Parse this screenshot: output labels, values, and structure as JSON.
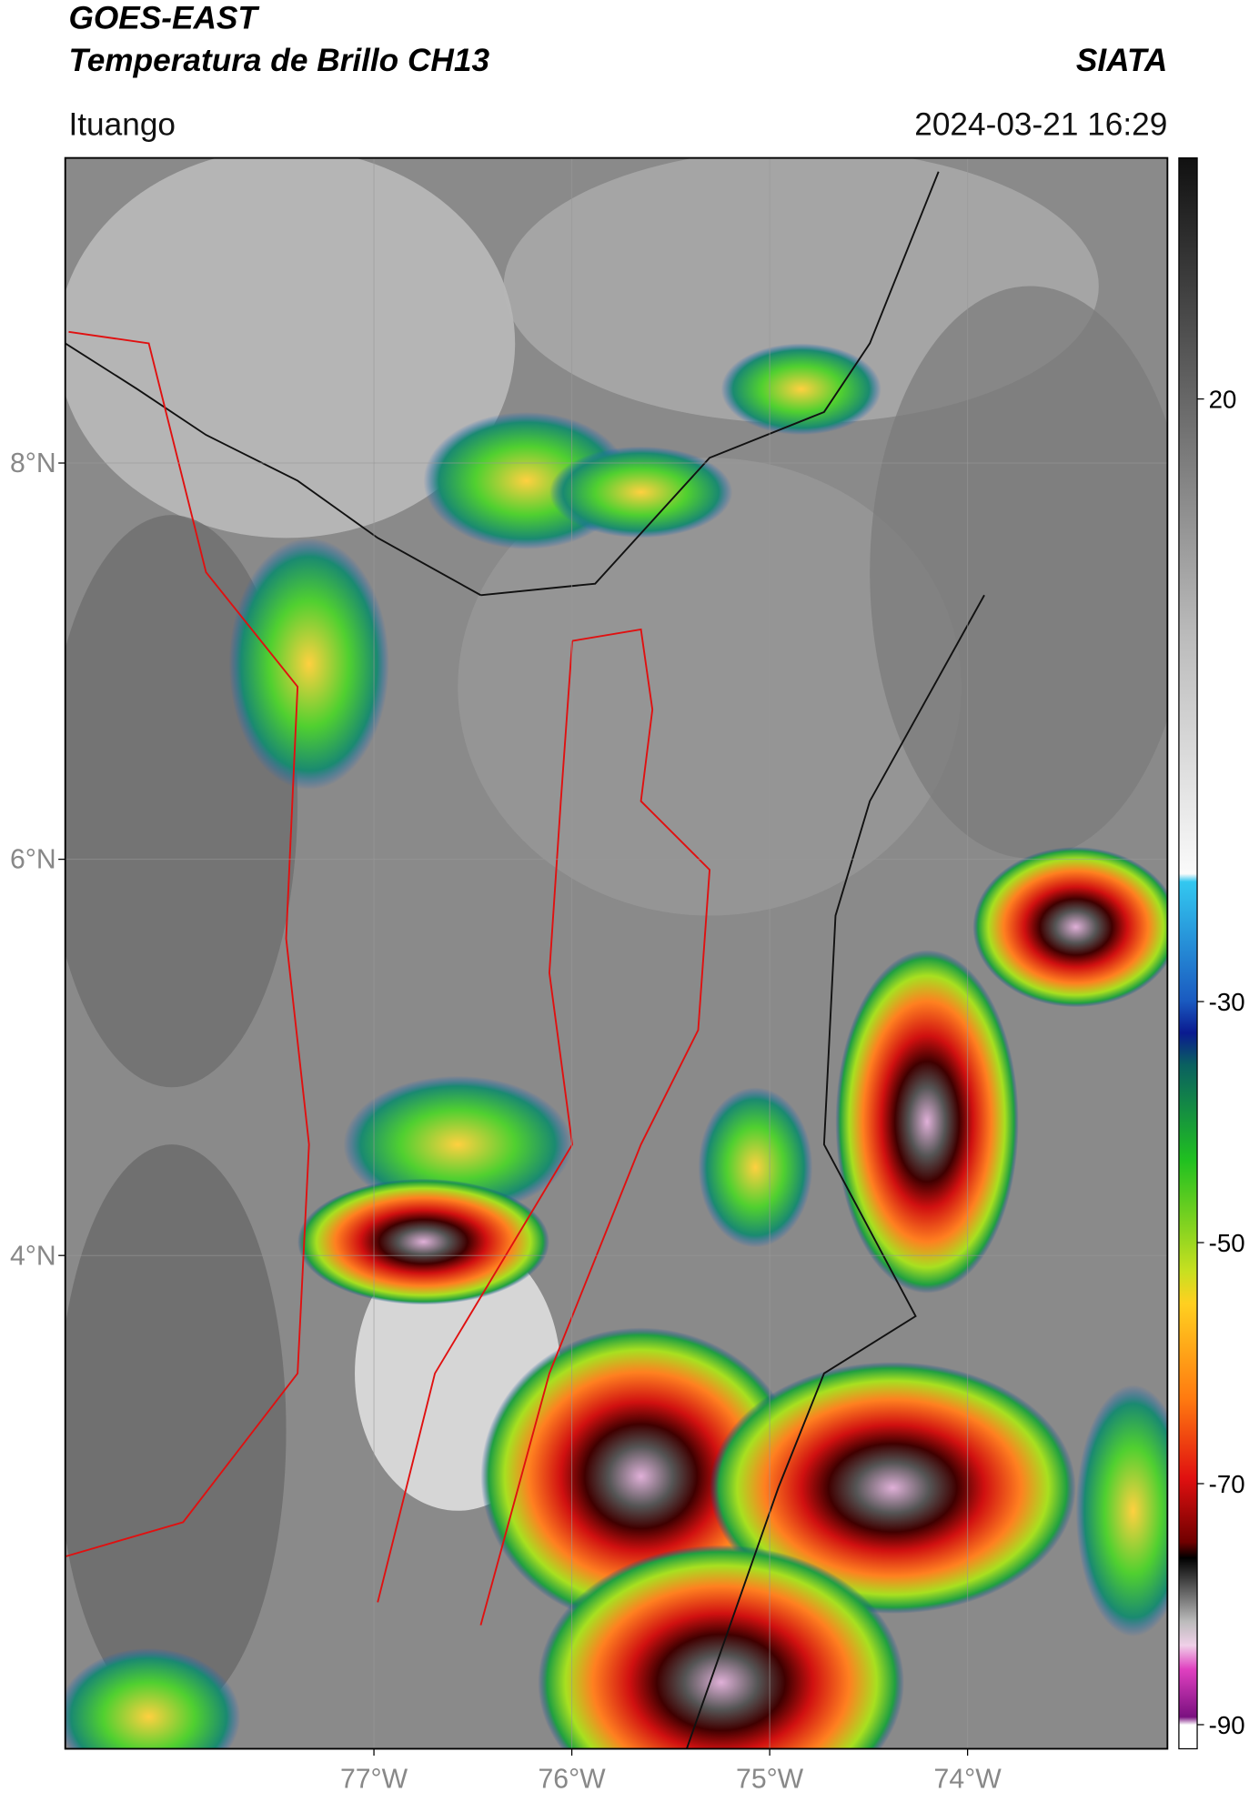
{
  "map": {
    "title": "GOES-EAST",
    "subtitle": "Temperatura de Brillo CH13",
    "source": "SIATA",
    "region": "Ituango",
    "timestamp": "2024-03-21 16:29",
    "xlim": [
      -78.56,
      -72.99
    ],
    "ylim": [
      1.51,
      9.54
    ],
    "xticks": [
      {
        "value": -77,
        "label": "77°W"
      },
      {
        "value": -76,
        "label": "76°W"
      },
      {
        "value": -75,
        "label": "75°W"
      },
      {
        "value": -74,
        "label": "74°W"
      }
    ],
    "yticks": [
      {
        "value": 4,
        "label": "4°N"
      },
      {
        "value": 6,
        "label": "6°N"
      },
      {
        "value": 8,
        "label": "8°N"
      }
    ],
    "grid": true,
    "colorbar": {
      "lim": [
        -92,
        40
      ],
      "ticks": [
        20,
        -30,
        -50,
        -70,
        -90
      ]
    }
  }
}
